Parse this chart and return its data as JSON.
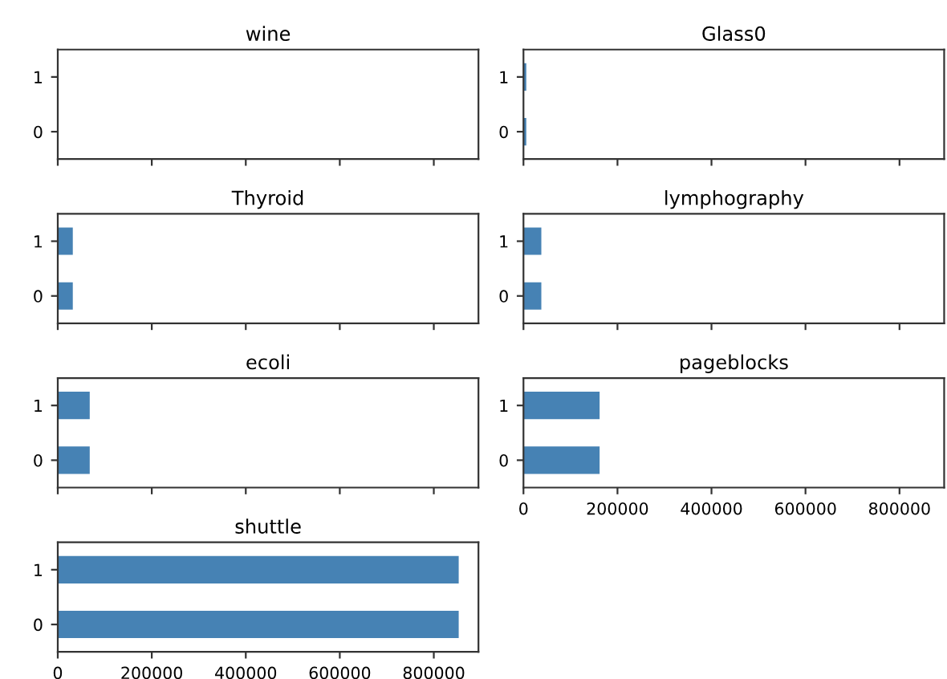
{
  "chart_data": [
    {
      "type": "bar",
      "orientation": "horizontal",
      "title": "wine",
      "categories": [
        "1",
        "0"
      ],
      "series": [
        {
          "color": "#4682b4",
          "values": [
            null,
            null
          ]
        }
      ],
      "xlim": [
        0,
        895000
      ],
      "xticks": [
        0,
        200000,
        400000,
        600000,
        800000
      ],
      "tick_labels": "y"
    },
    {
      "type": "bar",
      "orientation": "horizontal",
      "title": "Glass0",
      "categories": [
        "1",
        "0"
      ],
      "series": [
        {
          "color": "#4682b4",
          "values": [
            6000,
            6000
          ]
        }
      ],
      "xlim": [
        0,
        895000
      ],
      "xticks": [
        0,
        200000,
        400000,
        600000,
        800000
      ],
      "tick_labels": "y"
    },
    {
      "type": "bar",
      "orientation": "horizontal",
      "title": "Thyroid",
      "categories": [
        "1",
        "0"
      ],
      "series": [
        {
          "color": "#4682b4",
          "values": [
            32000,
            32000
          ]
        }
      ],
      "xlim": [
        0,
        895000
      ],
      "xticks": [
        0,
        200000,
        400000,
        600000,
        800000
      ],
      "tick_labels": "y"
    },
    {
      "type": "bar",
      "orientation": "horizontal",
      "title": "lymphography",
      "categories": [
        "1",
        "0"
      ],
      "series": [
        {
          "color": "#4682b4",
          "values": [
            38000,
            38000
          ]
        }
      ],
      "xlim": [
        0,
        895000
      ],
      "xticks": [
        0,
        200000,
        400000,
        600000,
        800000
      ],
      "tick_labels": "y"
    },
    {
      "type": "bar",
      "orientation": "horizontal",
      "title": "ecoli",
      "categories": [
        "1",
        "0"
      ],
      "series": [
        {
          "color": "#4682b4",
          "values": [
            68000,
            68000
          ]
        }
      ],
      "xlim": [
        0,
        895000
      ],
      "xticks": [
        0,
        200000,
        400000,
        600000,
        800000
      ],
      "tick_labels": "y"
    },
    {
      "type": "bar",
      "orientation": "horizontal",
      "title": "pageblocks",
      "categories": [
        "1",
        "0"
      ],
      "series": [
        {
          "color": "#4682b4",
          "values": [
            162000,
            162000
          ]
        }
      ],
      "xlim": [
        0,
        895000
      ],
      "xticks": [
        0,
        200000,
        400000,
        600000,
        800000
      ]
    },
    {
      "type": "bar",
      "orientation": "horizontal",
      "title": "shuttle",
      "categories": [
        "1",
        "0"
      ],
      "series": [
        {
          "color": "#4682b4",
          "values": [
            853000,
            853000
          ]
        }
      ],
      "xlim": [
        0,
        895000
      ],
      "xticks": [
        0,
        200000,
        400000,
        600000,
        800000
      ]
    }
  ]
}
